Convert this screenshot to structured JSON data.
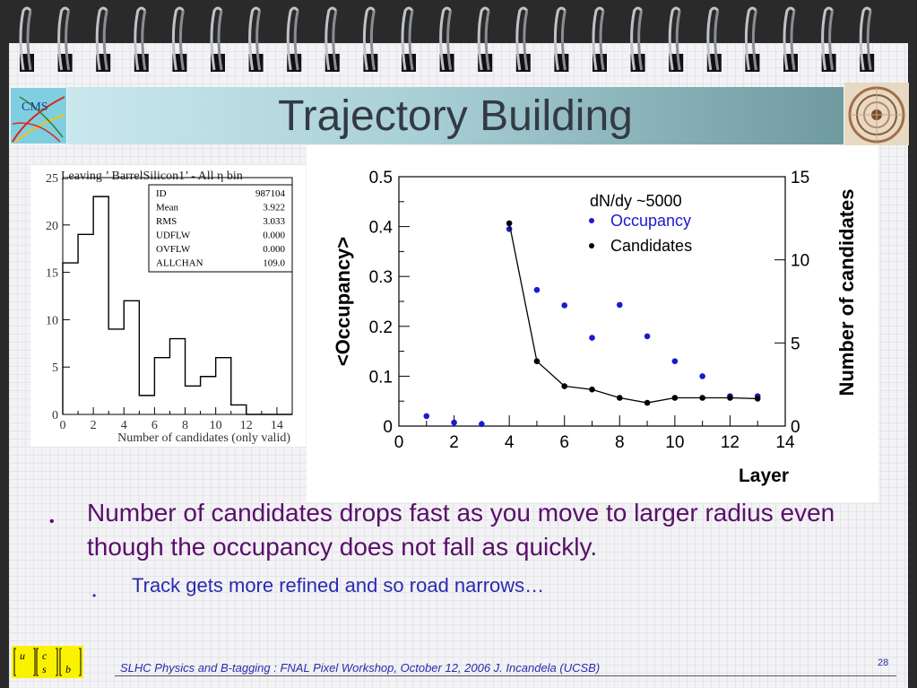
{
  "slide": {
    "title": "Trajectory Building",
    "bullets": [
      {
        "text": "Number of candidates drops fast as you move to larger radius even though the occupancy does not fall as quickly."
      },
      {
        "text": "Track gets more refined and so road narrows…"
      }
    ],
    "footer": "SLHC Physics and B-tagging : FNAL Pixel Workshop, October 12, 2006   J. Incandela (UCSB)",
    "page_number": "28",
    "logo_text": "CMS",
    "ucsb_logo_letters": [
      "u",
      "c",
      "s",
      "b"
    ],
    "accent_color": "#5a0e6a",
    "subbullet_color": "#2a2ab0"
  },
  "chart_data": [
    {
      "type": "bar",
      "title": "Leaving  ’ BarrelSilicon1’ - All η bin",
      "xlabel": "Number of candidates (only valid)",
      "ylabel": "",
      "xlim": [
        0,
        15
      ],
      "ylim": [
        0,
        25
      ],
      "x_ticks": [
        "0",
        "2",
        "4",
        "6",
        "8",
        "10",
        "12",
        "14"
      ],
      "y_ticks": [
        "0",
        "5",
        "10",
        "15",
        "20",
        "25"
      ],
      "bin_edges": [
        0,
        1,
        2,
        3,
        4,
        5,
        6,
        7,
        8,
        9,
        10,
        11,
        12,
        13,
        14,
        15
      ],
      "values": [
        16,
        19,
        23,
        9,
        12,
        2,
        6,
        8,
        3,
        4,
        6,
        1,
        0,
        0,
        0
      ],
      "stats_box": [
        {
          "label": "ID",
          "value": "987104"
        },
        {
          "label": "Mean",
          "value": "3.922"
        },
        {
          "label": "RMS",
          "value": "3.033"
        },
        {
          "label": "UDFLW",
          "value": "0.000"
        },
        {
          "label": "OVFLW",
          "value": "0.000"
        },
        {
          "label": "ALLCHAN",
          "value": "109.0"
        }
      ]
    },
    {
      "type": "scatter",
      "xlabel": "Layer",
      "ylabel": "<Occupancy>",
      "y2label": "Number of candidates",
      "annotation": "dN/dy ~5000",
      "xlim": [
        0,
        14
      ],
      "ylim": [
        0,
        0.5
      ],
      "y2lim": [
        0,
        15
      ],
      "x_ticks": [
        "0",
        "2",
        "4",
        "6",
        "8",
        "10",
        "12",
        "14"
      ],
      "y_ticks": [
        "0",
        "0.1",
        "0.2",
        "0.3",
        "0.4",
        "0.5"
      ],
      "y2_ticks": [
        "0",
        "5",
        "10",
        "15"
      ],
      "series": [
        {
          "name": "Occupancy",
          "color": "#1a1ad0",
          "axis": "left",
          "x": [
            1,
            2,
            3,
            4,
            5,
            6,
            7,
            8,
            9,
            10,
            11,
            12,
            13
          ],
          "y": [
            0.02,
            0.007,
            0.004,
            0.395,
            0.273,
            0.242,
            0.177,
            0.243,
            0.18,
            0.13,
            0.1,
            0.06,
            0.06
          ]
        },
        {
          "name": "Candidates",
          "color": "#000000",
          "axis": "right",
          "line": true,
          "x": [
            4,
            5,
            6,
            7,
            8,
            9,
            10,
            11,
            12,
            13
          ],
          "y": [
            12.2,
            3.9,
            2.4,
            2.2,
            1.7,
            1.4,
            1.7,
            1.7,
            1.7,
            1.65
          ]
        }
      ]
    }
  ]
}
